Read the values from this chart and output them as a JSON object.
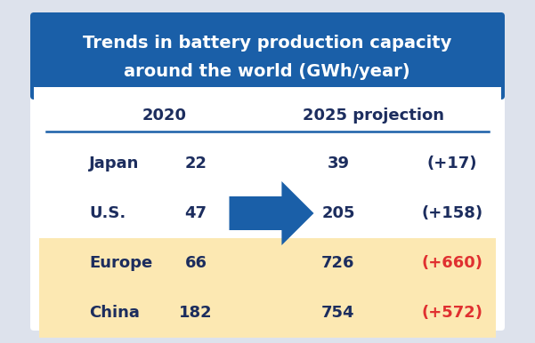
{
  "title_line1": "Trends in battery production capacity",
  "title_line2": "around the world (GWh/year)",
  "title_bg": "#1a5fa8",
  "title_text_color": "#ffffff",
  "header_2020": "2020",
  "header_2025": "2025 projection",
  "header_text_color": "#1c2d5e",
  "rows": [
    {
      "region": "Japan",
      "val2020": "22",
      "val2025": "39",
      "change": "(+17)",
      "highlight": false,
      "change_color": "#1c2d5e"
    },
    {
      "region": "U.S.",
      "val2020": "47",
      "val2025": "205",
      "change": "(+158)",
      "highlight": false,
      "change_color": "#1c2d5e"
    },
    {
      "region": "Europe",
      "val2020": "66",
      "val2025": "726",
      "change": "(+660)",
      "highlight": true,
      "change_color": "#e03030"
    },
    {
      "region": "China",
      "val2020": "182",
      "val2025": "754",
      "change": "(+572)",
      "highlight": true,
      "change_color": "#e03030"
    }
  ],
  "highlight_color": "#fce8b2",
  "arrow_color": "#1a5fa8",
  "outer_bg": "#dde2ec",
  "inner_bg": "#ffffff",
  "divider_color": "#1a5fa8",
  "row_text_color": "#1c2d5e",
  "figsize": [
    6.01,
    3.86
  ],
  "dpi": 100
}
